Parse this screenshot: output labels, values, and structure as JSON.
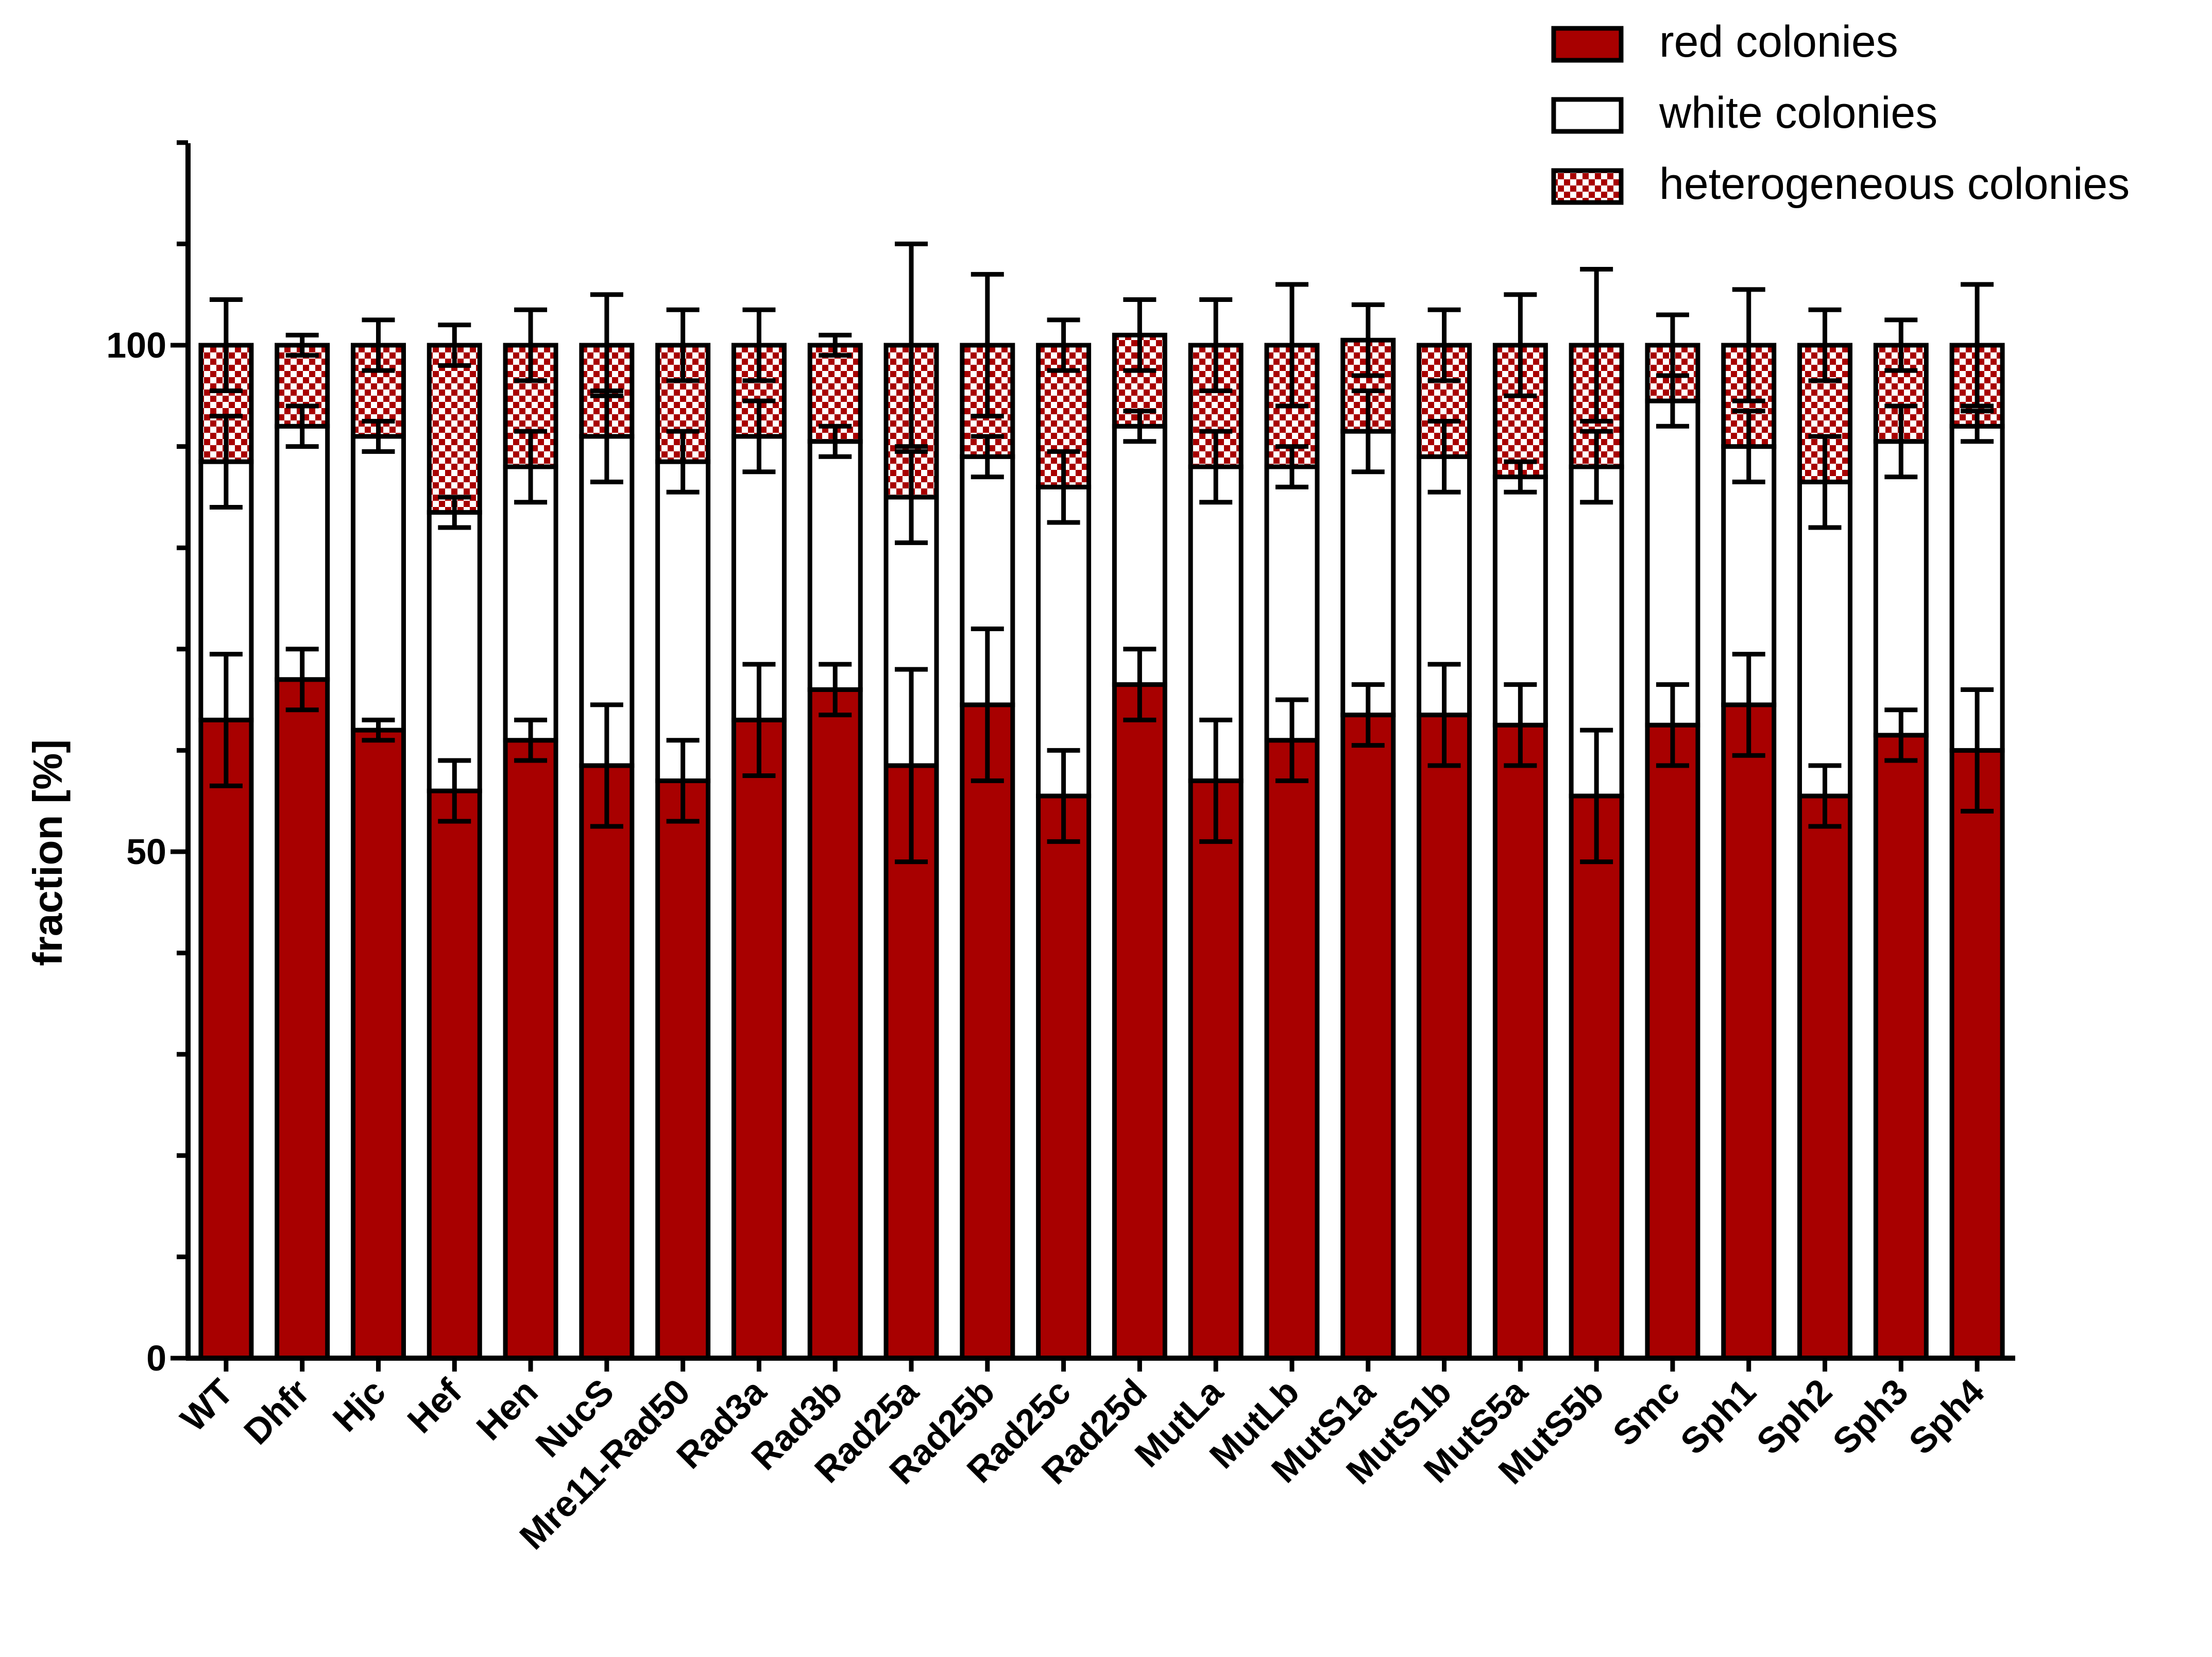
{
  "chart_data": {
    "type": "bar",
    "stacked": true,
    "title": "",
    "xlabel": "",
    "ylabel": "fraction [%]",
    "ylim": [
      0,
      120
    ],
    "yticks": [
      0,
      50,
      100
    ],
    "ytick_labels": [
      "0",
      "50",
      "100"
    ],
    "legend_position": "top-right",
    "categories": [
      "WT",
      "Dhfr",
      "Hjc",
      "Hef",
      "Hen",
      "NucS",
      "Mre11-Rad50",
      "Rad3a",
      "Rad3b",
      "Rad25a",
      "Rad25b",
      "Rad25c",
      "Rad25d",
      "MutLa",
      "MutLb",
      "MutS1a",
      "MutS1b",
      "MutS5a",
      "MutS5b",
      "Smc",
      "Sph1",
      "Sph2",
      "Sph3",
      "Sph4"
    ],
    "series": [
      {
        "name": "red colonies",
        "color": "#a80000",
        "pattern": "solid",
        "values": [
          63,
          67,
          62,
          56,
          61,
          58.5,
          57,
          63,
          66,
          58.5,
          64.5,
          55.5,
          66.5,
          57,
          61,
          63.5,
          63.5,
          62.5,
          55.5,
          62.5,
          64.5,
          55.5,
          61.5,
          60
        ],
        "errors": [
          6.5,
          3,
          1,
          3,
          2,
          6,
          4,
          5.5,
          2.5,
          9.5,
          7.5,
          4.5,
          3.5,
          6,
          4,
          3,
          5,
          4,
          6.5,
          4,
          5,
          3,
          2.5,
          6
        ]
      },
      {
        "name": "white colonies",
        "color": "#ffffff",
        "pattern": "solid",
        "values": [
          25.5,
          25,
          29,
          27.5,
          27,
          32.5,
          31.5,
          28,
          24.5,
          26.5,
          24.5,
          30.5,
          25.5,
          31,
          27,
          28,
          25.5,
          24.5,
          32.5,
          32,
          25.5,
          31,
          29,
          32
        ],
        "errors": [
          4.5,
          2,
          1.5,
          1.5,
          3.5,
          4.5,
          3,
          3.5,
          1.5,
          4.5,
          2,
          3.5,
          1.5,
          3.5,
          2,
          4,
          3.5,
          1.5,
          3.5,
          2.5,
          3.5,
          4.5,
          3.5,
          1.5
        ]
      },
      {
        "name": "heterogeneous colonies",
        "color": "#a80000",
        "pattern": "checker",
        "values": [
          11.5,
          8,
          9,
          16.5,
          12,
          9,
          11.5,
          9,
          9.5,
          15,
          11,
          14,
          9,
          12,
          12,
          9,
          11,
          13,
          12,
          5.5,
          10,
          13.5,
          9.5,
          8
        ],
        "errors": [
          4.5,
          1,
          2.5,
          2,
          3.5,
          5,
          3.5,
          3.5,
          1,
          10,
          7,
          2.5,
          3.5,
          4.5,
          6,
          3.5,
          3.5,
          5,
          7.5,
          3,
          5.5,
          3.5,
          2.5,
          6
        ]
      }
    ]
  }
}
